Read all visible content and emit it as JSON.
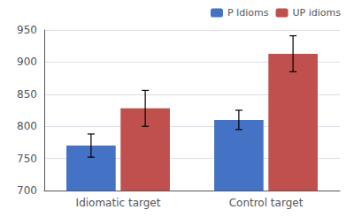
{
  "chart_data": {
    "type": "bar",
    "categories": [
      "Idiomatic target",
      "Control target"
    ],
    "series": [
      {
        "name": "P Idioms",
        "color": "#4472c4",
        "values": [
          770,
          810
        ],
        "errors": [
          18,
          15
        ]
      },
      {
        "name": "UP idioms",
        "color": "#c0504d",
        "values": [
          828,
          913
        ],
        "errors": [
          28,
          28
        ]
      }
    ],
    "ylim": [
      700,
      950
    ],
    "yticks": [
      700,
      750,
      800,
      850,
      900,
      950
    ],
    "grid": true,
    "legend": "upper right"
  }
}
